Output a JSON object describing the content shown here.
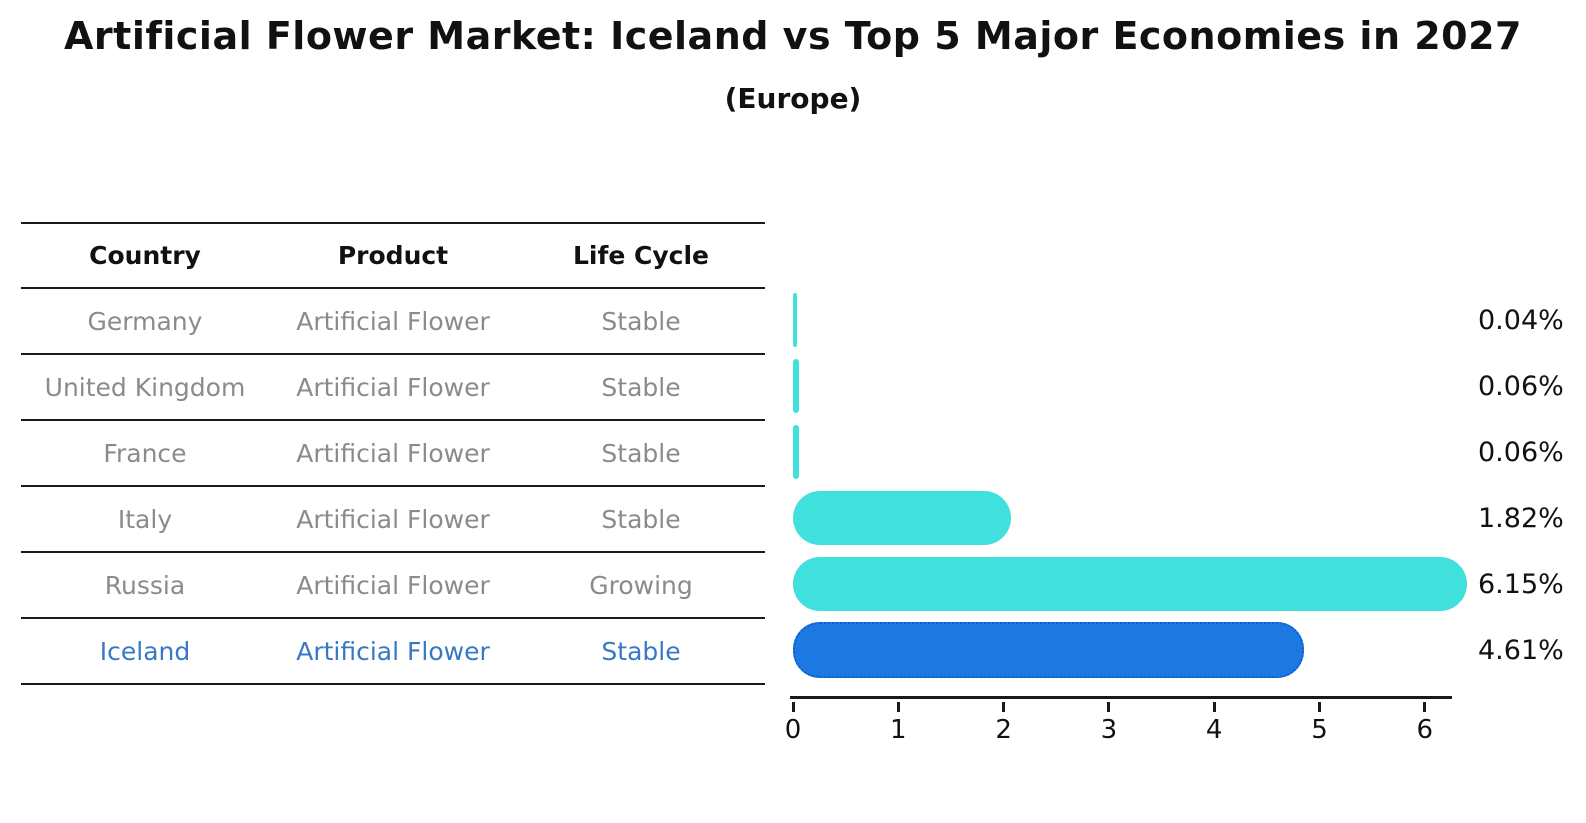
{
  "title": "Artificial Flower Market: Iceland vs Top 5 Major Economies in 2027",
  "subtitle": "(Europe)",
  "colors": {
    "bar_default": "#40E0DC",
    "bar_highlight": "#1E78E2",
    "bar_highlight_border": "#0B5FD0",
    "highlight_text": "#3779C4",
    "table_text": "#8B8B8B",
    "header_text": "#111111",
    "line": "#1A1A1A"
  },
  "table": {
    "columns": [
      "Country",
      "Product",
      "Life Cycle"
    ],
    "rows": [
      {
        "country": "Germany",
        "product": "Artificial Flower",
        "life_cycle": "Stable",
        "highlight": false
      },
      {
        "country": "United Kingdom",
        "product": "Artificial Flower",
        "life_cycle": "Stable",
        "highlight": false
      },
      {
        "country": "France",
        "product": "Artificial Flower",
        "life_cycle": "Stable",
        "highlight": false
      },
      {
        "country": "Italy",
        "product": "Artificial Flower",
        "life_cycle": "Stable",
        "highlight": false
      },
      {
        "country": "Russia",
        "product": "Artificial Flower",
        "life_cycle": "Growing",
        "highlight": false
      },
      {
        "country": "Iceland",
        "product": "Artificial Flower",
        "life_cycle": "Stable",
        "highlight": true
      }
    ]
  },
  "chart_data": {
    "type": "bar",
    "orientation": "horizontal",
    "title": "Artificial Flower Market: Iceland vs Top 5 Major Economies in 2027",
    "subtitle": "(Europe)",
    "categories": [
      "Germany",
      "United Kingdom",
      "France",
      "Italy",
      "Russia",
      "Iceland"
    ],
    "values": [
      0.04,
      0.06,
      0.06,
      1.82,
      6.15,
      4.61
    ],
    "value_labels": [
      "0.04%",
      "0.06%",
      "0.06%",
      "1.82%",
      "6.15%",
      "4.61%"
    ],
    "units": "%",
    "xlabel": "",
    "ylabel": "",
    "xlim": [
      0,
      6.29
    ],
    "xticks": [
      0,
      1,
      2,
      3,
      4,
      5,
      6
    ],
    "grid": false,
    "legend": false,
    "highlight_category": "Iceland"
  }
}
